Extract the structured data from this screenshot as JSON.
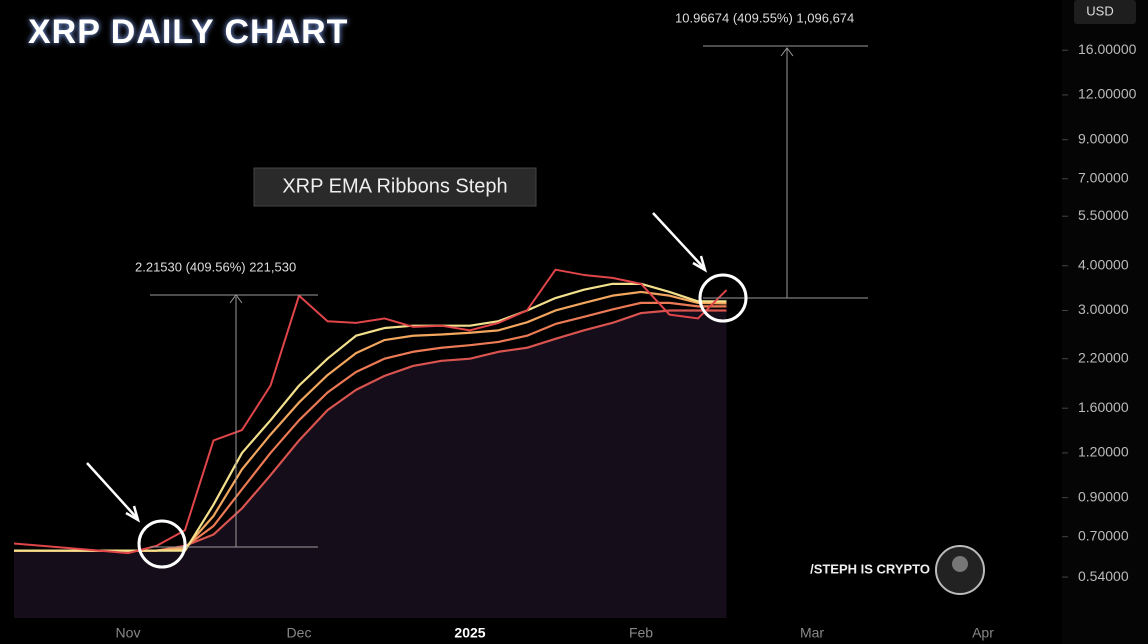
{
  "chart_data": {
    "type": "line",
    "title": "XRP DAILY CHART",
    "annotations": [
      "XRP EMA Ribbons Steph",
      "2.21530 (409.56%) 221,530",
      "10.96674 (409.55%) 1,096,674",
      "/STEPH IS CRYPTO"
    ],
    "currency": "USD",
    "log_scale": true,
    "categories": [
      null,
      null,
      null,
      null,
      "Nov",
      null,
      null,
      null,
      null,
      null,
      "Dec",
      null,
      null,
      null,
      null,
      null,
      "2025",
      null,
      null,
      null,
      null,
      null,
      "Feb",
      null,
      null,
      null,
      null,
      null,
      "Mar",
      null,
      null,
      null,
      null,
      null,
      "Apr",
      null,
      null
    ],
    "series": [
      {
        "color": "#e0454a",
        "values": [
          0.67,
          0.66,
          0.65,
          0.64,
          0.63,
          0.66,
          0.73,
          1.3,
          1.39,
          1.85,
          3.3,
          2.8,
          2.77,
          2.85,
          2.7,
          2.72,
          2.64,
          2.77,
          3.0,
          3.9,
          3.77,
          3.7,
          3.56,
          2.92,
          2.85,
          3.42,
          null,
          null,
          null,
          null,
          null,
          null,
          null,
          null,
          null,
          null,
          null
        ]
      },
      {
        "color": "#f3e08c",
        "values": [
          0.64,
          0.64,
          0.64,
          0.64,
          0.64,
          0.64,
          0.64,
          0.86,
          1.2,
          1.48,
          1.85,
          2.2,
          2.55,
          2.68,
          2.72,
          2.72,
          2.72,
          2.8,
          3.0,
          3.25,
          3.43,
          3.56,
          3.56,
          3.38,
          3.18,
          3.18,
          null,
          null,
          null,
          null,
          null,
          null,
          null,
          null,
          null,
          null,
          null
        ]
      },
      {
        "color": "#f2a65e",
        "values": [
          0.64,
          0.64,
          0.64,
          0.64,
          0.64,
          0.64,
          0.65,
          0.8,
          1.08,
          1.35,
          1.66,
          1.98,
          2.28,
          2.48,
          2.55,
          2.57,
          2.6,
          2.64,
          2.78,
          3.0,
          3.15,
          3.3,
          3.38,
          3.3,
          3.15,
          3.14,
          null,
          null,
          null,
          null,
          null,
          null,
          null,
          null,
          null,
          null,
          null
        ]
      },
      {
        "color": "#ec7a55",
        "values": [
          0.64,
          0.64,
          0.64,
          0.64,
          0.64,
          0.64,
          0.655,
          0.75,
          0.95,
          1.2,
          1.48,
          1.77,
          2.02,
          2.2,
          2.3,
          2.36,
          2.4,
          2.45,
          2.55,
          2.75,
          2.88,
          3.02,
          3.15,
          3.15,
          3.08,
          3.08,
          null,
          null,
          null,
          null,
          null,
          null,
          null,
          null,
          null,
          null,
          null
        ]
      },
      {
        "color": "#d9534f",
        "values": [
          0.64,
          0.64,
          0.64,
          0.64,
          0.64,
          0.64,
          0.66,
          0.71,
          0.84,
          1.04,
          1.3,
          1.58,
          1.8,
          1.97,
          2.1,
          2.17,
          2.2,
          2.3,
          2.36,
          2.5,
          2.64,
          2.77,
          2.95,
          3.0,
          3.0,
          3.0,
          null,
          null,
          null,
          null,
          null,
          null,
          null,
          null,
          null,
          null,
          null
        ]
      }
    ],
    "ylim": [
      0.415,
      22.1
    ],
    "yticks": [
      {
        "value": 0.54,
        "label": "0.54000"
      },
      {
        "value": 0.7,
        "label": "0.70000"
      },
      {
        "value": 0.9,
        "label": "0.90000"
      },
      {
        "value": 1.2,
        "label": "1.20000"
      },
      {
        "value": 1.6,
        "label": "1.60000"
      },
      {
        "value": 2.2,
        "label": "2.20000"
      },
      {
        "value": 3,
        "label": "3.00000"
      },
      {
        "value": 4,
        "label": "4.00000"
      },
      {
        "value": 5.5,
        "label": "5.50000"
      },
      {
        "value": 7,
        "label": "7.00000"
      },
      {
        "value": 9,
        "label": "9.00000"
      },
      {
        "value": 12,
        "label": "12.00000"
      },
      {
        "value": 16,
        "label": "16.00000"
      }
    ]
  }
}
